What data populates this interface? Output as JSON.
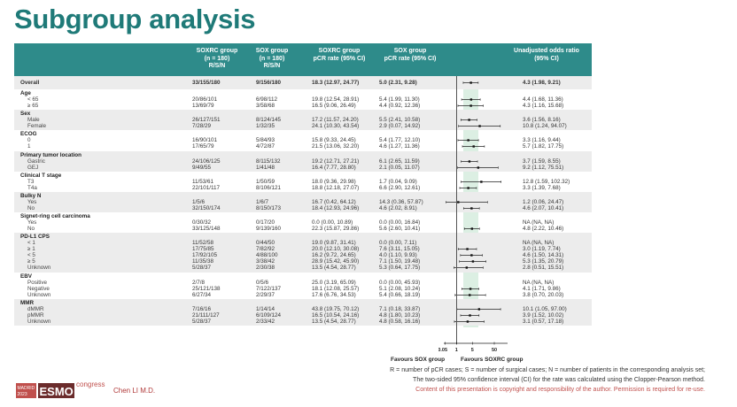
{
  "title": "Subgroup analysis",
  "header": {
    "col1": [
      "SOXRC group",
      "(n = 180)",
      "R/S/N"
    ],
    "col2": [
      "SOX group",
      "(n = 180)",
      "R/S/N"
    ],
    "col3": [
      "SOXRC group",
      "pCR rate (95% CI)"
    ],
    "col4": [
      "SOX group",
      "pCR rate (95% CI)"
    ],
    "col6": [
      "Unadjusted odds ratio",
      "(95% CI)"
    ]
  },
  "colors": {
    "accent": "#2e8b8a",
    "title": "#1f7a78",
    "shade": "#ececec",
    "band": "#dcefe3",
    "notice": "#c0504d"
  },
  "overall": {
    "label": "Overall",
    "soxrc_rsn": "33/155/180",
    "sox_rsn": "9/156/180",
    "soxrc_rate": "18.3 (12.97, 24.77)",
    "sox_rate": "5.0 (2.31, 9.28)",
    "or": "4.3 (1.98, 9.21)"
  },
  "groups": [
    {
      "label": "Age",
      "rows": [
        {
          "label": "< 65",
          "soxrc_rsn": "20/86/101",
          "sox_rsn": "6/98/112",
          "soxrc_rate": "19.8 (12.54, 28.91)",
          "sox_rate": "5.4 (1.99, 11.30)",
          "or": "4.4 (1.68, 11.36)"
        },
        {
          "label": "≥ 65",
          "soxrc_rsn": "13/69/79",
          "sox_rsn": "3/58/68",
          "soxrc_rate": "16.5 (9.06, 26.49)",
          "sox_rate": "4.4 (0.92, 12.36)",
          "or": "4.3 (1.16, 15.68)"
        }
      ]
    },
    {
      "label": "Sex",
      "rows": [
        {
          "label": "Male",
          "soxrc_rsn": "26/127/151",
          "sox_rsn": "8/124/145",
          "soxrc_rate": "17.2 (11.57, 24.20)",
          "sox_rate": "5.5 (2.41, 10.58)",
          "or": "3.6 (1.56, 8.16)"
        },
        {
          "label": "Female",
          "soxrc_rsn": "7/28/29",
          "sox_rsn": "1/32/35",
          "soxrc_rate": "24.1 (10.30, 43.54)",
          "sox_rate": "2.9 (0.07, 14.92)",
          "or": "10.8 (1.24, 94.07)"
        }
      ]
    },
    {
      "label": "ECOG",
      "rows": [
        {
          "label": "0",
          "soxrc_rsn": "16/90/101",
          "sox_rsn": "5/84/93",
          "soxrc_rate": "15.8 (9.33, 24.45)",
          "sox_rate": "5.4 (1.77, 12.10)",
          "or": "3.3 (1.16, 9.44)"
        },
        {
          "label": "1",
          "soxrc_rsn": "17/65/79",
          "sox_rsn": "4/72/87",
          "soxrc_rate": "21.5 (13.06, 32.20)",
          "sox_rate": "4.6 (1.27, 11.36)",
          "or": "5.7 (1.82, 17.75)"
        }
      ]
    },
    {
      "label": "Primary tumor location",
      "rows": [
        {
          "label": "Gastric",
          "soxrc_rsn": "24/106/125",
          "sox_rsn": "8/115/132",
          "soxrc_rate": "19.2 (12.71, 27.21)",
          "sox_rate": "6.1 (2.65, 11.59)",
          "or": "3.7 (1.59, 8.55)"
        },
        {
          "label": "GEJ",
          "soxrc_rsn": "9/49/55",
          "sox_rsn": "1/41/48",
          "soxrc_rate": "16.4 (7.77, 28.80)",
          "sox_rate": "2.1 (0.05, 11.07)",
          "or": "9.2 (1.12, 75.51)"
        }
      ]
    },
    {
      "label": "Clinical T stage",
      "rows": [
        {
          "label": "T3",
          "soxrc_rsn": "11/53/61",
          "sox_rsn": "1/50/59",
          "soxrc_rate": "18.0 (9.36, 29.98)",
          "sox_rate": "1.7 (0.04, 9.09)",
          "or": "12.8 (1.59, 102.32)"
        },
        {
          "label": "T4a",
          "soxrc_rsn": "22/101/117",
          "sox_rsn": "8/106/121",
          "soxrc_rate": "18.8 (12.18, 27.07)",
          "sox_rate": "6.6 (2.90, 12.61)",
          "or": "3.3 (1.39, 7.68)"
        }
      ]
    },
    {
      "label": "Bulky N",
      "rows": [
        {
          "label": "Yes",
          "soxrc_rsn": "1/5/6",
          "sox_rsn": "1/6/7",
          "soxrc_rate": "16.7 (0.42, 64.12)",
          "sox_rate": "14.3 (0.36, 57.87)",
          "or": "1.2 (0.06, 24.47)"
        },
        {
          "label": "No",
          "soxrc_rsn": "32/150/174",
          "sox_rsn": "8/150/173",
          "soxrc_rate": "18.4 (12.93, 24.96)",
          "sox_rate": "4.6 (2.02, 8.91)",
          "or": "4.6 (2.07, 10.41)"
        }
      ]
    },
    {
      "label": "Signet-ring cell carcinoma",
      "rows": [
        {
          "label": "Yes",
          "soxrc_rsn": "0/30/32",
          "sox_rsn": "0/17/20",
          "soxrc_rate": "0.0 (0.00, 10.89)",
          "sox_rate": "0.0 (0.00, 16.84)",
          "or": "NA (NA, NA)"
        },
        {
          "label": "No",
          "soxrc_rsn": "33/125/148",
          "sox_rsn": "9/139/160",
          "soxrc_rate": "22.3 (15.87, 29.86)",
          "sox_rate": "5.6 (2.60, 10.41)",
          "or": "4.8 (2.22, 10.46)"
        }
      ]
    },
    {
      "label": "PD-L1 CPS",
      "rows": [
        {
          "label": "< 1",
          "soxrc_rsn": "11/52/58",
          "sox_rsn": "0/44/50",
          "soxrc_rate": "19.0 (9.87, 31.41)",
          "sox_rate": "0.0 (0.00, 7.11)",
          "or": "NA (NA, NA)"
        },
        {
          "label": "≥ 1",
          "soxrc_rsn": "17/75/85",
          "sox_rsn": "7/82/92",
          "soxrc_rate": "20.0 (12.10, 30.08)",
          "sox_rate": "7.6 (3.11, 15.05)",
          "or": "3.0 (1.19, 7.74)"
        },
        {
          "label": "< 5",
          "soxrc_rsn": "17/92/105",
          "sox_rsn": "4/88/100",
          "soxrc_rate": "16.2 (9.72, 24.65)",
          "sox_rate": "4.0 (1.10, 9.93)",
          "or": "4.6 (1.50, 14.31)"
        },
        {
          "label": "≥ 5",
          "soxrc_rsn": "11/35/38",
          "sox_rsn": "3/38/42",
          "soxrc_rate": "28.9 (15.42, 45.90)",
          "sox_rate": "7.1 (1.50, 19.48)",
          "or": "5.3 (1.35, 20.79)"
        },
        {
          "label": "Unknown",
          "soxrc_rsn": "5/28/37",
          "sox_rsn": "2/30/38",
          "soxrc_rate": "13.5 (4.54, 28.77)",
          "sox_rate": "5.3 (0.64, 17.75)",
          "or": "2.8 (0.51, 15.51)"
        }
      ]
    },
    {
      "label": "EBV",
      "rows": [
        {
          "label": "Positive",
          "soxrc_rsn": "2/7/8",
          "sox_rsn": "0/5/6",
          "soxrc_rate": "25.0 (3.19, 65.09)",
          "sox_rate": "0.0 (0.00, 45.93)",
          "or": "NA (NA, NA)"
        },
        {
          "label": "Negative",
          "soxrc_rsn": "25/121/138",
          "sox_rsn": "7/122/137",
          "soxrc_rate": "18.1 (12.08, 25.57)",
          "sox_rate": "5.1 (2.08, 10.24)",
          "or": "4.1 (1.71, 9.86)"
        },
        {
          "label": "Unknown",
          "soxrc_rsn": "6/27/34",
          "sox_rsn": "2/29/37",
          "soxrc_rate": "17.6 (6.76, 34.53)",
          "sox_rate": "5.4 (0.66, 18.19)",
          "or": "3.8 (0.70, 20.03)"
        }
      ]
    },
    {
      "label": "MMR",
      "rows": [
        {
          "label": "dMMR",
          "soxrc_rsn": "7/16/16",
          "sox_rsn": "1/14/14",
          "soxrc_rate": "43.8 (19.75, 70.12)",
          "sox_rate": "7.1 (0.18, 33.87)",
          "or": "10.1 (1.05, 97.00)"
        },
        {
          "label": "pMMR",
          "soxrc_rsn": "21/111/127",
          "sox_rsn": "6/109/124",
          "soxrc_rate": "16.5 (10.54, 24.16)",
          "sox_rate": "4.8 (1.80, 10.23)",
          "or": "3.9 (1.52, 10.02)"
        },
        {
          "label": "Unknown",
          "soxrc_rsn": "5/28/37",
          "sox_rsn": "2/33/42",
          "soxrc_rate": "13.5 (4.54, 28.77)",
          "sox_rate": "4.8 (0.58, 16.16)",
          "or": "3.1 (0.57, 17.18)"
        }
      ]
    }
  ],
  "chart_data": {
    "type": "forest",
    "xscale": "log",
    "reference_line": 1,
    "ticks": [
      "0.05",
      "1",
      "5",
      "50"
    ],
    "tick_values": [
      0.05,
      1,
      5,
      50
    ],
    "left_label": "Favours SOX group",
    "right_label": "Favours SOXRC group",
    "shaded_band": [
      1.98,
      9.21
    ]
  },
  "footer": {
    "note1": "R = number of pCR cases; S = number of surgical cases; N = number of patients in the corresponding analysis set;",
    "note2": "The two-sided 95% confidence interval (CI) for the rate was calculated using the Clopper-Pearson method.",
    "note3": "Content of this presentation is copyright and responsibility of the author. Permission is required for re-use.",
    "author": "Chen LI M.D.",
    "logo_text": "MADRID 2023 ESMO congress"
  }
}
